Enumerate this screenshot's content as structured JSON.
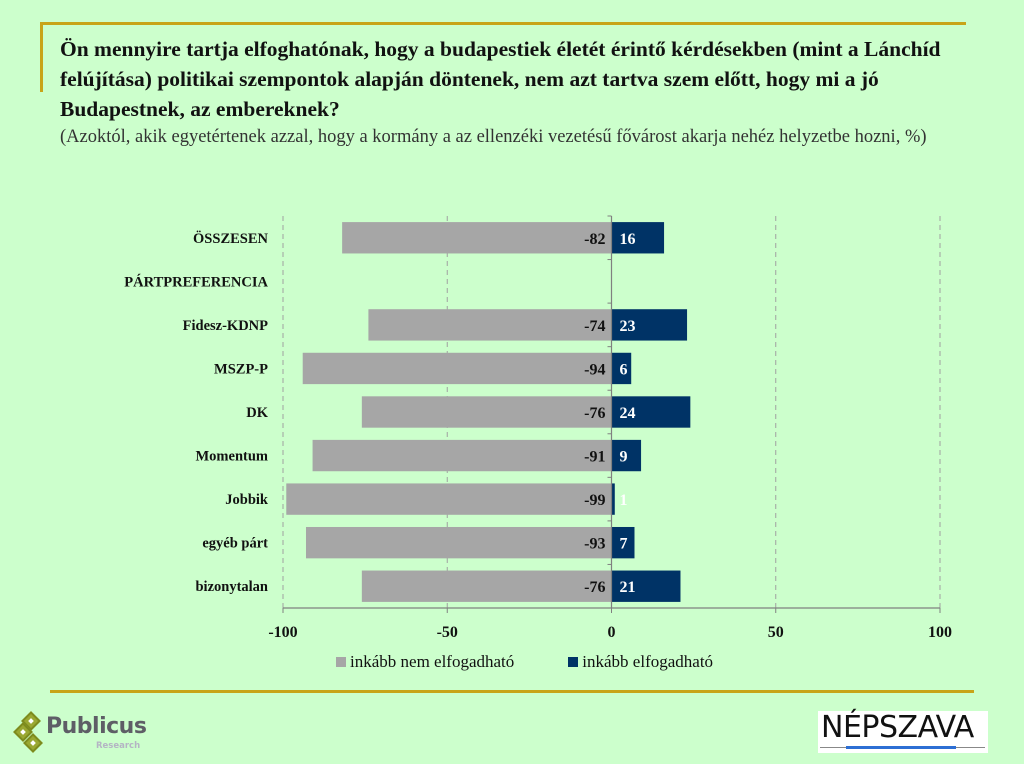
{
  "header": {
    "title": "Ön mennyire tartja elfoghatónak, hogy a budapestiek életét érintő kérdésekben (mint a Lánchíd felújítása) politikai szempontok alapján döntenek, nem azt tartva szem előtt, hogy mi a jó Budapestnek, az embereknek?",
    "subtitle": "(Azoktól, akik egyetértenek azzal, hogy a kormány a az ellenzéki vezetésű fővárost akarja nehéz helyzetbe hozni, %)"
  },
  "chart_data": {
    "type": "bar",
    "orientation": "horizontal",
    "stacked": "diverging",
    "title": "Ön mennyire tartja elfoghatónak, hogy a budapestiek életét érintő kérdésekben (mint a Lánchíd felújítása) politikai szempontok alapján döntenek, nem azt tartva szem előtt, hogy mi a jó Budapestnek, az embereknek?",
    "subtitle": "(Azoktól, akik egyetértenek azzal, hogy a kormány a az ellenzéki vezetésű fővárost akarja nehéz helyzetbe hozni, %)",
    "categories": [
      "ÖSSZESEN",
      "PÁRTPREFERENCIA",
      "Fidesz-KDNP",
      "MSZP-P",
      "DK",
      "Momentum",
      "Jobbik",
      "egyéb párt",
      "bizonytalan"
    ],
    "series": [
      {
        "name": "inkább nem elfogadható",
        "color": "#a6a6a6",
        "label_color": "#111111",
        "values": [
          -82,
          null,
          -74,
          -94,
          -76,
          -91,
          -99,
          -93,
          -76
        ]
      },
      {
        "name": "inkább elfogadható",
        "color": "#003366",
        "label_color": "#ffffff",
        "values": [
          16,
          null,
          23,
          6,
          24,
          9,
          1,
          7,
          21
        ]
      }
    ],
    "xlim": [
      -100,
      100
    ],
    "xticks": [
      -100,
      -50,
      0,
      50,
      100
    ],
    "xlabel": "",
    "ylabel": "",
    "grid": "vertical dashed",
    "legend": "bottom"
  },
  "footer": {
    "publicus_name": "Publicus",
    "publicus_sub": "Research",
    "nepszava_name": "NÉPSZAVA"
  }
}
